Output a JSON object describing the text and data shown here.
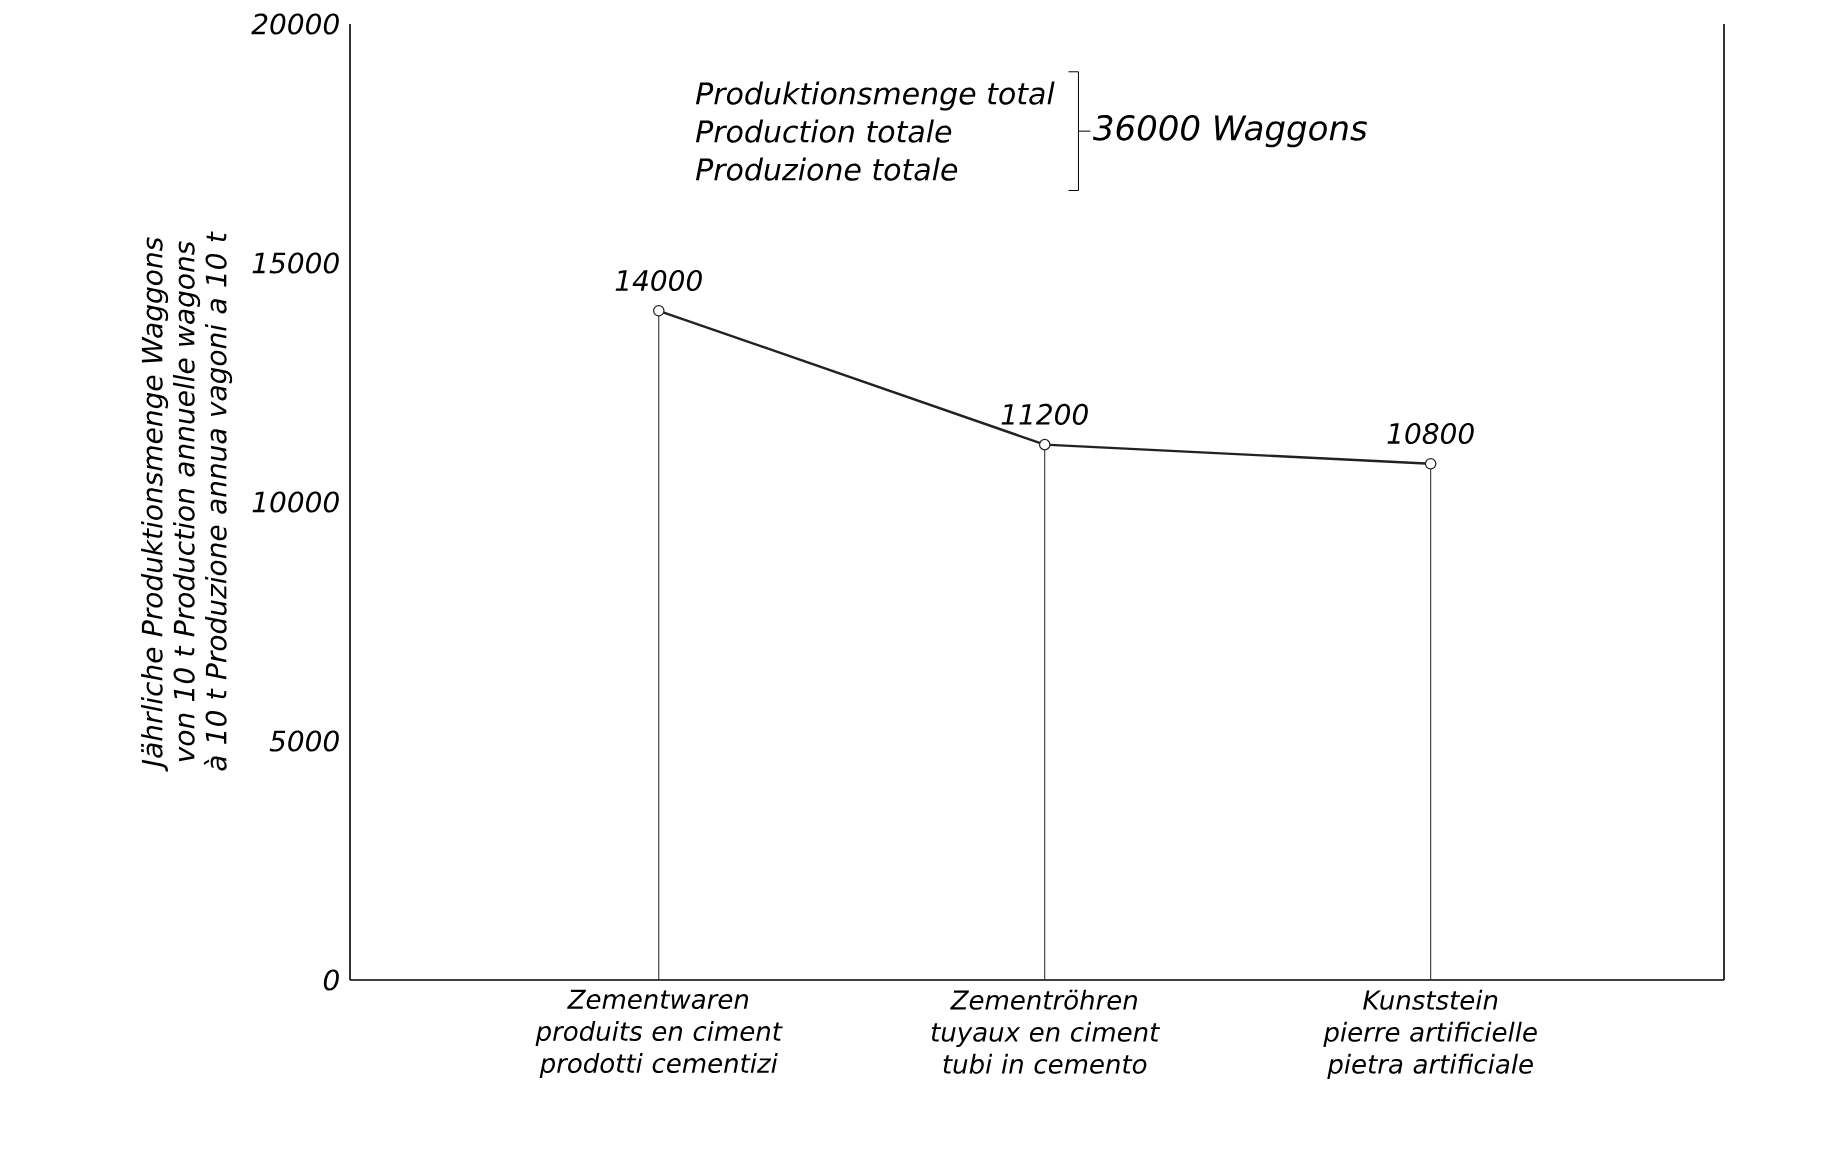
{
  "chart_data": {
    "type": "line",
    "ylabel": "Jährliche Produktionsmenge Waggons von 10 t Production annuelle wagons à 10 t Produzione annua vagoni a 10 t",
    "categories": [
      "Zementwaren produits en ciment prodotti cementizi",
      "Zementröhren tuyaux en ciment tubi in cemento",
      "Kunststein pierre artificielle pietra artificiale"
    ],
    "series": [
      {
        "color": "#222222",
        "values": [
          14000,
          11200,
          10800
        ]
      }
    ],
    "ylim": [
      0,
      20000
    ],
    "yticks": [
      0,
      5000,
      10000,
      15000,
      20000
    ],
    "marker": "circle",
    "line_style": "solid",
    "data_labels": true,
    "grid": false,
    "annotations": [
      "Produktionsmenge total",
      "Production totale",
      "Produzione totale",
      "36000 Waggons"
    ]
  }
}
